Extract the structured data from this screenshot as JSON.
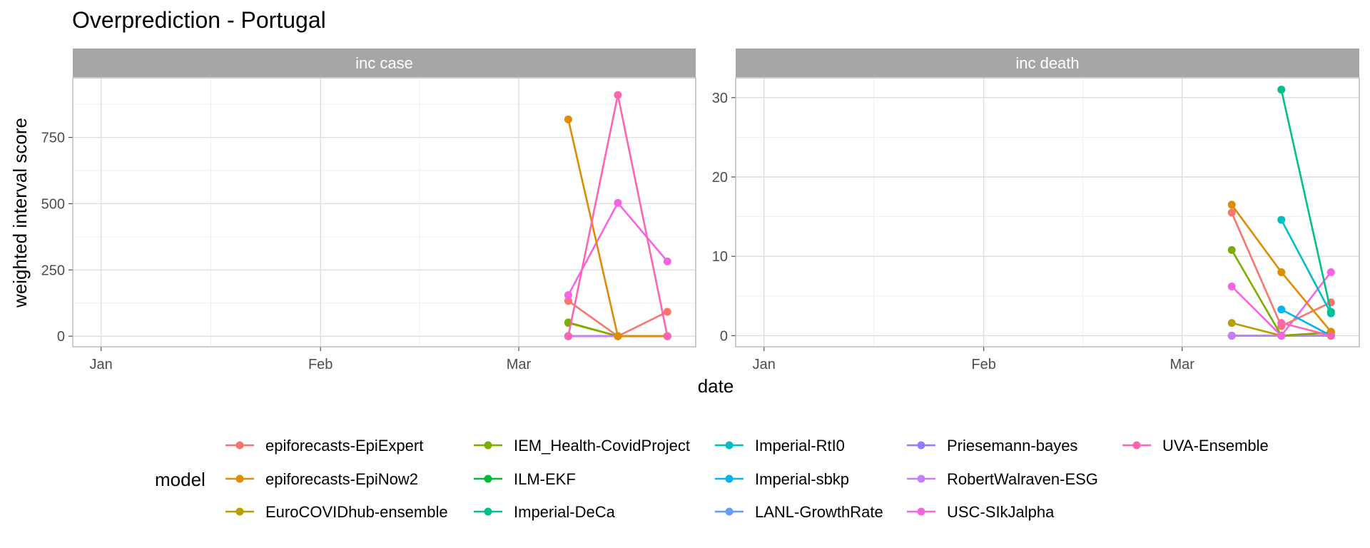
{
  "chart_data": {
    "type": "line",
    "title": "Overprediction - Portugal",
    "xlabel": "date",
    "ylabel": "weighted interval score",
    "x_dates": [
      "2021-03-08",
      "2021-03-15",
      "2021-03-22"
    ],
    "x_range": [
      "2020-12-28",
      "2021-03-26"
    ],
    "x_ticks": [
      {
        "date": "2021-01-01",
        "label": "Jan"
      },
      {
        "date": "2021-02-01",
        "label": "Feb"
      },
      {
        "date": "2021-03-01",
        "label": "Mar"
      }
    ],
    "grid": true,
    "legend": {
      "title": "model",
      "position": "bottom",
      "columns": [
        [
          "epiforecasts-EpiExpert",
          "epiforecasts-EpiNow2",
          "EuroCOVIDhub-ensemble"
        ],
        [
          "IEM_Health-CovidProject",
          "ILM-EKF",
          "Imperial-DeCa"
        ],
        [
          "Imperial-RtI0",
          "Imperial-sbkp",
          "LANL-GrowthRate"
        ],
        [
          "Priesemann-bayes",
          "RobertWalraven-ESG",
          "USC-SIkJalpha"
        ],
        [
          "UVA-Ensemble"
        ]
      ]
    },
    "colors": {
      "epiforecasts-EpiExpert": "#F8766D",
      "epiforecasts-EpiNow2": "#DE8C00",
      "EuroCOVIDhub-ensemble": "#B79F00",
      "IEM_Health-CovidProject": "#7CAE00",
      "ILM-EKF": "#00BA38",
      "Imperial-DeCa": "#00C08B",
      "Imperial-RtI0": "#00BFC4",
      "Imperial-sbkp": "#00B4F0",
      "LANL-GrowthRate": "#619CFF",
      "Priesemann-bayes": "#8F7CFF",
      "RobertWalraven-ESG": "#C77CFF",
      "USC-SIkJalpha": "#F564E3",
      "UVA-Ensemble": "#FF64B0"
    },
    "panels": [
      {
        "strip": "inc case",
        "ylim": [
          -40,
          975
        ],
        "y_ticks": [
          0,
          250,
          500,
          750
        ],
        "series": [
          {
            "name": "epiforecasts-EpiExpert",
            "values": [
              133,
              0,
              92
            ]
          },
          {
            "name": "EuroCOVIDhub-ensemble",
            "values": [
              50,
              0,
              0
            ]
          },
          {
            "name": "IEM_Health-CovidProject",
            "values": [
              52,
              0,
              0
            ]
          },
          {
            "name": "ILM-EKF",
            "values": [
              0,
              0,
              0
            ]
          },
          {
            "name": "Imperial-DeCa",
            "values": [
              0,
              0,
              0
            ]
          },
          {
            "name": "Imperial-RtI0",
            "values": [
              0,
              0,
              0
            ]
          },
          {
            "name": "Imperial-sbkp",
            "values": [
              0,
              0,
              0
            ]
          },
          {
            "name": "LANL-GrowthRate",
            "values": [
              0,
              0,
              0
            ]
          },
          {
            "name": "Priesemann-bayes",
            "values": [
              0,
              0,
              0
            ]
          },
          {
            "name": "RobertWalraven-ESG",
            "values": [
              0,
              0,
              0
            ]
          },
          {
            "name": "USC-SIkJalpha",
            "values": [
              155,
              503,
              282
            ]
          },
          {
            "name": "epiforecasts-EpiNow2",
            "values": [
              818,
              0,
              0
            ]
          },
          {
            "name": "UVA-Ensemble",
            "values": [
              0,
              910,
              0
            ]
          }
        ]
      },
      {
        "strip": "inc death",
        "ylim": [
          -1.4,
          32.5
        ],
        "y_ticks": [
          0,
          10,
          20,
          30
        ],
        "series": [
          {
            "name": "ILM-EKF",
            "values": [
              0,
              0,
              0
            ]
          },
          {
            "name": "LANL-GrowthRate",
            "values": [
              0,
              0,
              0
            ]
          },
          {
            "name": "Priesemann-bayes",
            "values": [
              0,
              0,
              0
            ]
          },
          {
            "name": "RobertWalraven-ESG",
            "values": [
              0,
              0,
              0
            ]
          },
          {
            "name": "EuroCOVIDhub-ensemble",
            "values": [
              1.6,
              0,
              0.4
            ]
          },
          {
            "name": "IEM_Health-CovidProject",
            "values": [
              10.8,
              0,
              0.4
            ]
          },
          {
            "name": "USC-SIkJalpha",
            "values": [
              6.2,
              0,
              8.0
            ]
          },
          {
            "name": "epiforecasts-EpiExpert",
            "values": [
              15.5,
              1.2,
              4.2
            ]
          },
          {
            "name": "epiforecasts-EpiNow2",
            "values": [
              16.5,
              8.0,
              0.5
            ]
          },
          {
            "name": "Imperial-sbkp",
            "values": [
              null,
              3.3,
              0
            ]
          },
          {
            "name": "Imperial-RtI0",
            "values": [
              null,
              14.6,
              2.8
            ]
          },
          {
            "name": "UVA-Ensemble",
            "values": [
              null,
              1.6,
              0
            ]
          },
          {
            "name": "Imperial-DeCa",
            "values": [
              null,
              31.0,
              3.0
            ]
          }
        ]
      }
    ]
  }
}
